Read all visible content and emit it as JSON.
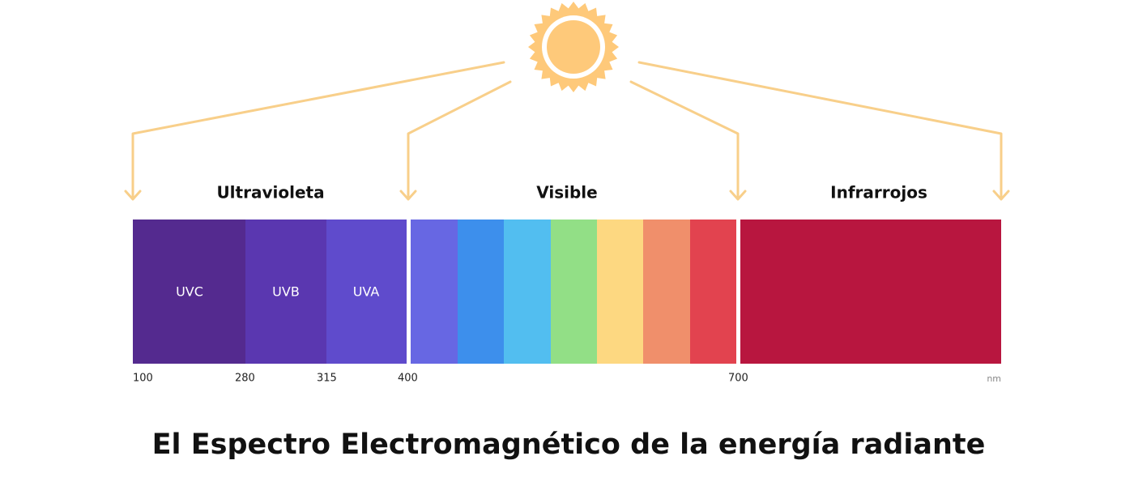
{
  "groups": [
    {
      "label": "Ultravioleta"
    },
    {
      "label": "Visible"
    },
    {
      "label": "Infrarrojos"
    }
  ],
  "bands": [
    {
      "label": "UVC"
    },
    {
      "label": "UVB"
    },
    {
      "label": "UVA"
    }
  ],
  "boundaries": [
    "100",
    "280",
    "315",
    "400",
    "700"
  ],
  "unit": "nm",
  "title": "El Espectro Electromagnético de la energía radiante"
}
